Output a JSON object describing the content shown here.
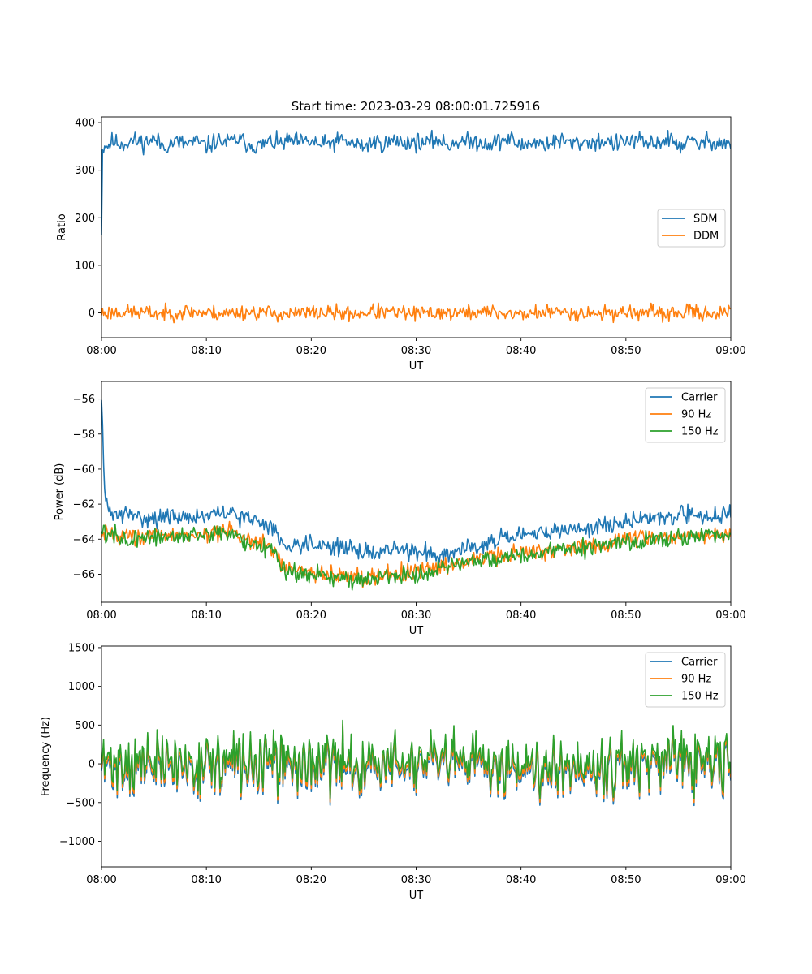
{
  "figure": {
    "title": "Start time: 2023-03-29 08:00:01.725916"
  },
  "chart_data": [
    {
      "type": "line",
      "xlabel": "UT",
      "ylabel": "Ratio",
      "x_ticks": [
        "08:00",
        "08:10",
        "08:20",
        "08:30",
        "08:40",
        "08:50",
        "09:00"
      ],
      "y_ticks": [
        0,
        100,
        200,
        300,
        400
      ],
      "xlim_minutes": [
        0,
        60
      ],
      "ylim": [
        -52,
        412
      ],
      "grid": false,
      "legend_position": "center-right",
      "series": [
        {
          "name": "SDM",
          "color": "#1f77b4",
          "x": [
            0,
            0.1,
            0.3,
            0.5,
            1,
            2,
            3,
            4,
            5,
            6,
            7,
            8,
            9,
            10,
            11,
            12,
            13,
            14,
            15,
            16,
            17,
            18,
            19,
            20,
            21,
            22,
            23,
            24,
            25,
            26,
            27,
            28,
            29,
            30,
            31,
            32,
            33,
            34,
            35,
            36,
            37,
            38,
            39,
            40,
            41,
            42,
            43,
            44,
            45,
            46,
            47,
            48,
            49,
            50,
            51,
            52,
            53,
            54,
            55,
            56,
            57,
            58,
            59,
            60
          ],
          "y": [
            175,
            340,
            355,
            350,
            360,
            355,
            362,
            358,
            365,
            350,
            360,
            355,
            360,
            350,
            362,
            358,
            365,
            355,
            350,
            360,
            355,
            362,
            358,
            360,
            352,
            358,
            362,
            355,
            350,
            360,
            355,
            362,
            358,
            360,
            355,
            365,
            352,
            362,
            358,
            360,
            355,
            362,
            365,
            350,
            360,
            355,
            358,
            362,
            355,
            360,
            358,
            362,
            355,
            360,
            362,
            355,
            358,
            365,
            352,
            360,
            355,
            362,
            358,
            355
          ],
          "noise": 28,
          "seed": 11
        },
        {
          "name": "DDM",
          "color": "#ff7f0e",
          "x": [
            0,
            2,
            4,
            6,
            8,
            10,
            12,
            14,
            16,
            18,
            20,
            22,
            24,
            26,
            28,
            30,
            32,
            34,
            36,
            38,
            40,
            42,
            44,
            46,
            48,
            50,
            52,
            54,
            56,
            58,
            60
          ],
          "y": [
            0,
            2,
            0,
            -2,
            3,
            0,
            -1,
            2,
            0,
            -3,
            1,
            0,
            -2,
            3,
            0,
            -2,
            1,
            -1,
            2,
            0,
            -3,
            1,
            2,
            0,
            -1,
            2,
            0,
            -2,
            1,
            0,
            0
          ],
          "noise": 24,
          "seed": 23
        }
      ]
    },
    {
      "type": "line",
      "xlabel": "UT",
      "ylabel": "Power (dB)",
      "x_ticks": [
        "08:00",
        "08:10",
        "08:20",
        "08:30",
        "08:40",
        "08:50",
        "09:00"
      ],
      "y_ticks": [
        -56,
        -58,
        -60,
        -62,
        -64,
        -66
      ],
      "xlim_minutes": [
        0,
        60
      ],
      "ylim": [
        -67.6,
        -55.0
      ],
      "grid": false,
      "legend_position": "top-right",
      "series": [
        {
          "name": "Carrier",
          "color": "#1f77b4",
          "x": [
            0,
            0.1,
            0.3,
            0.7,
            2,
            5,
            8,
            10,
            12,
            15,
            16.5,
            17,
            18,
            20,
            22,
            24,
            26,
            28,
            30,
            32,
            34,
            36,
            38,
            40,
            42,
            44,
            46,
            48,
            50,
            52,
            54,
            56,
            58,
            60
          ],
          "y": [
            -55.5,
            -57.5,
            -61.5,
            -62.5,
            -62.6,
            -62.8,
            -62.7,
            -62.7,
            -62.5,
            -63.0,
            -63.3,
            -64.3,
            -64.3,
            -64.2,
            -64.4,
            -64.6,
            -64.8,
            -64.6,
            -64.7,
            -64.9,
            -64.6,
            -64.3,
            -64.0,
            -63.9,
            -63.6,
            -63.5,
            -63.4,
            -63.2,
            -63.0,
            -62.8,
            -62.7,
            -62.6,
            -62.7,
            -62.5
          ],
          "noise": 0.75,
          "seed": 31
        },
        {
          "name": "90 Hz",
          "color": "#ff7f0e",
          "x": [
            0,
            3,
            6,
            10,
            12,
            15,
            16.5,
            17.2,
            19,
            21,
            23,
            25,
            27,
            29,
            31,
            33,
            35,
            37,
            40,
            43,
            46,
            50,
            53,
            56,
            60
          ],
          "y": [
            -63.5,
            -63.9,
            -63.8,
            -63.7,
            -63.5,
            -64.3,
            -64.6,
            -65.6,
            -65.8,
            -66.0,
            -66.1,
            -66.2,
            -66.0,
            -65.9,
            -65.8,
            -65.4,
            -65.2,
            -65.0,
            -64.8,
            -64.6,
            -64.4,
            -64.1,
            -63.9,
            -63.8,
            -63.7
          ],
          "noise": 0.75,
          "seed": 43
        },
        {
          "name": "150 Hz",
          "color": "#2ca02c",
          "x": [
            0,
            3,
            6,
            10,
            12,
            15,
            16.5,
            17.2,
            19,
            21,
            23,
            25,
            27,
            29,
            31,
            33,
            35,
            37,
            40,
            43,
            46,
            50,
            53,
            56,
            60
          ],
          "y": [
            -63.6,
            -64.0,
            -63.9,
            -63.8,
            -63.6,
            -64.4,
            -64.7,
            -65.7,
            -65.9,
            -66.1,
            -66.2,
            -66.3,
            -66.1,
            -66.0,
            -65.9,
            -65.5,
            -65.3,
            -65.1,
            -64.9,
            -64.7,
            -64.5,
            -64.2,
            -64.0,
            -63.9,
            -63.8
          ],
          "noise": 0.8,
          "seed": 57
        }
      ]
    },
    {
      "type": "line",
      "xlabel": "UT",
      "ylabel": "Frequency (Hz)",
      "x_ticks": [
        "08:00",
        "08:10",
        "08:20",
        "08:30",
        "08:40",
        "08:50",
        "09:00"
      ],
      "y_ticks": [
        1500,
        1000,
        500,
        0,
        -500,
        -1000
      ],
      "xlim_minutes": [
        0,
        60
      ],
      "ylim": [
        -1330,
        1520
      ],
      "grid": false,
      "legend_position": "top-right",
      "series": [
        {
          "name": "Carrier",
          "color": "#1f77b4",
          "x": [
            0,
            60
          ],
          "y": [
            -60,
            -60
          ],
          "noise": 560,
          "seed": 71
        },
        {
          "name": "90 Hz",
          "color": "#ff7f0e",
          "x": [
            0,
            60
          ],
          "y": [
            -20,
            -20
          ],
          "noise": 560,
          "seed": 71
        },
        {
          "name": "150 Hz",
          "color": "#2ca02c",
          "x": [
            0,
            60
          ],
          "y": [
            30,
            30
          ],
          "noise": 560,
          "seed": 71
        }
      ]
    }
  ]
}
